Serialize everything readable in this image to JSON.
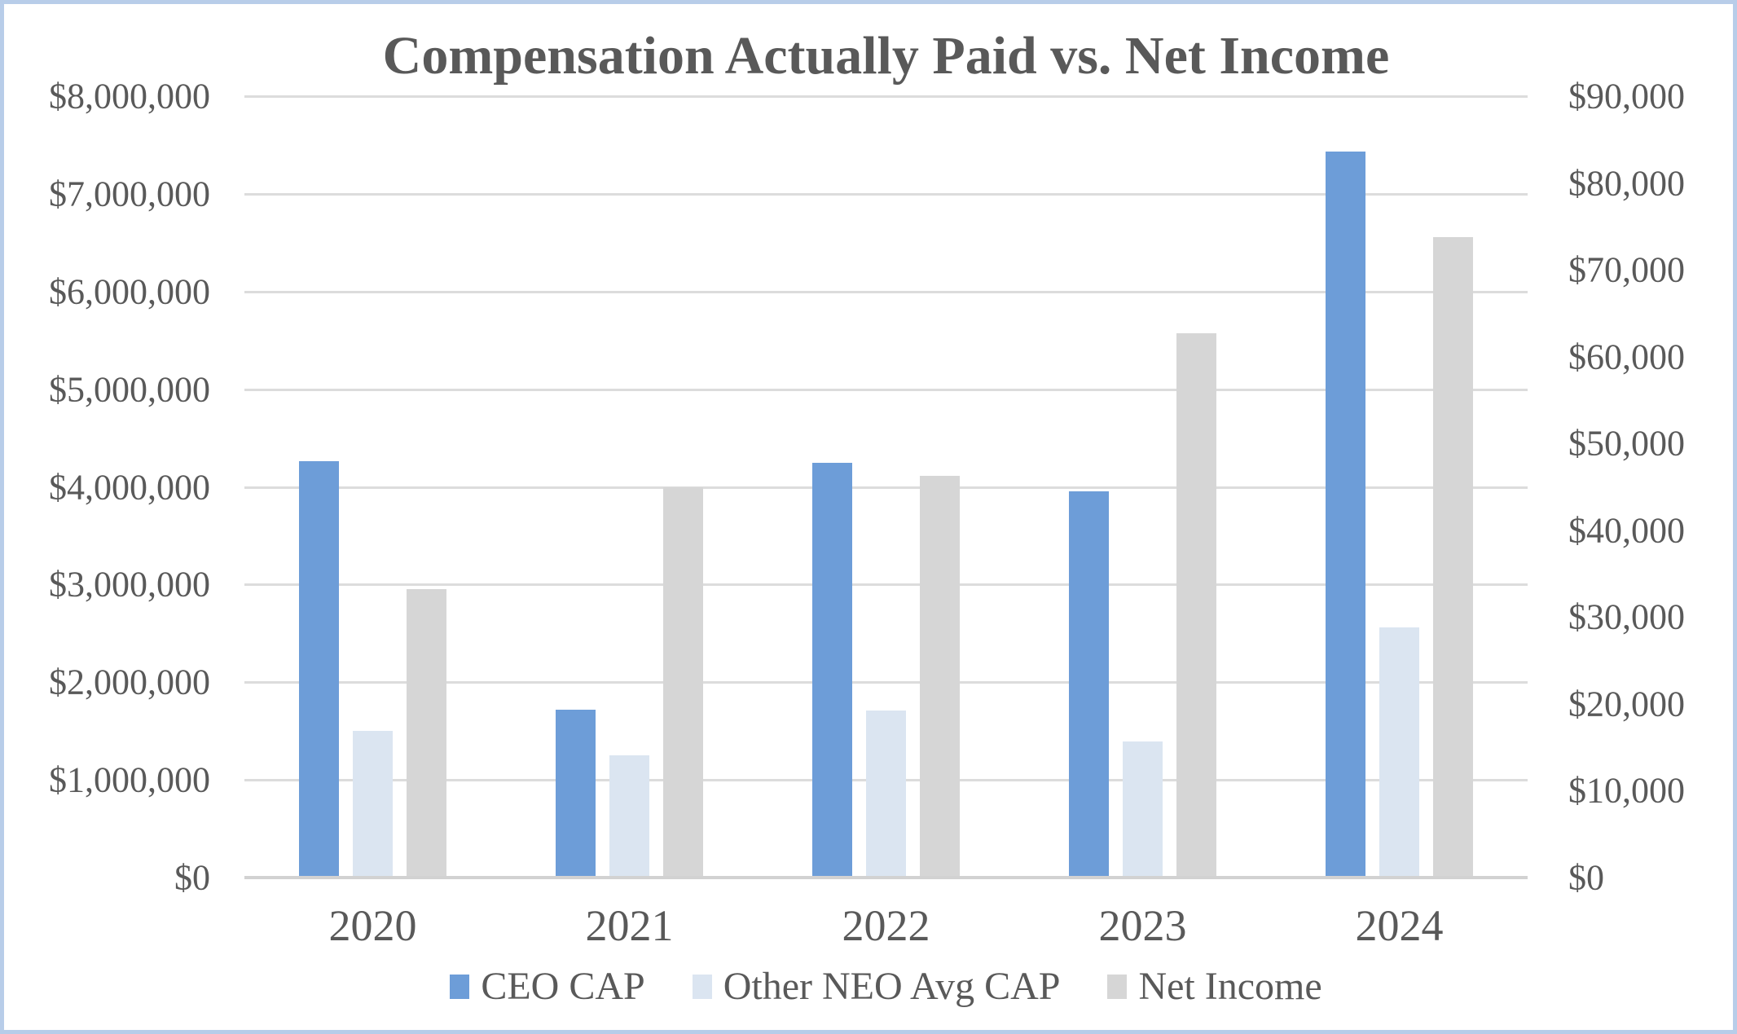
{
  "chart_data": {
    "type": "bar",
    "title": "Compensation Actually Paid vs. Net Income",
    "categories": [
      "2020",
      "2021",
      "2022",
      "2023",
      "2024"
    ],
    "series": [
      {
        "name": "CEO CAP",
        "axis": "left",
        "color": "#6D9DD8",
        "values": [
          4260000,
          1720000,
          4250000,
          3950000,
          7430000
        ]
      },
      {
        "name": "Other NEO Avg CAP",
        "axis": "left",
        "color": "#DBE5F1",
        "values": [
          1500000,
          1250000,
          1710000,
          1390000,
          2560000
        ]
      },
      {
        "name": "Net Income",
        "axis": "right",
        "color": "#D6D6D6",
        "values": [
          33200,
          45000,
          46300,
          62700,
          73800
        ]
      }
    ],
    "left_axis": {
      "min": 0,
      "max": 8000000,
      "tick_interval": 1000000,
      "tick_labels": [
        "$0",
        "$1,000,000",
        "$2,000,000",
        "$3,000,000",
        "$4,000,000",
        "$5,000,000",
        "$6,000,000",
        "$7,000,000",
        "$8,000,000"
      ]
    },
    "right_axis": {
      "min": 0,
      "max": 90000,
      "tick_interval": 10000,
      "tick_labels": [
        "$0",
        "$10,000",
        "$20,000",
        "$30,000",
        "$40,000",
        "$50,000",
        "$60,000",
        "$70,000",
        "$80,000",
        "$90,000"
      ]
    },
    "legend_position": "bottom",
    "grid": true
  },
  "colors": {
    "title_text": "#595959",
    "axis_text": "#595959",
    "gridline": "#DCDCDC",
    "axis_line": "#D2D2D2",
    "chart_border": "#B8CDE9",
    "background": "#ffffff"
  }
}
